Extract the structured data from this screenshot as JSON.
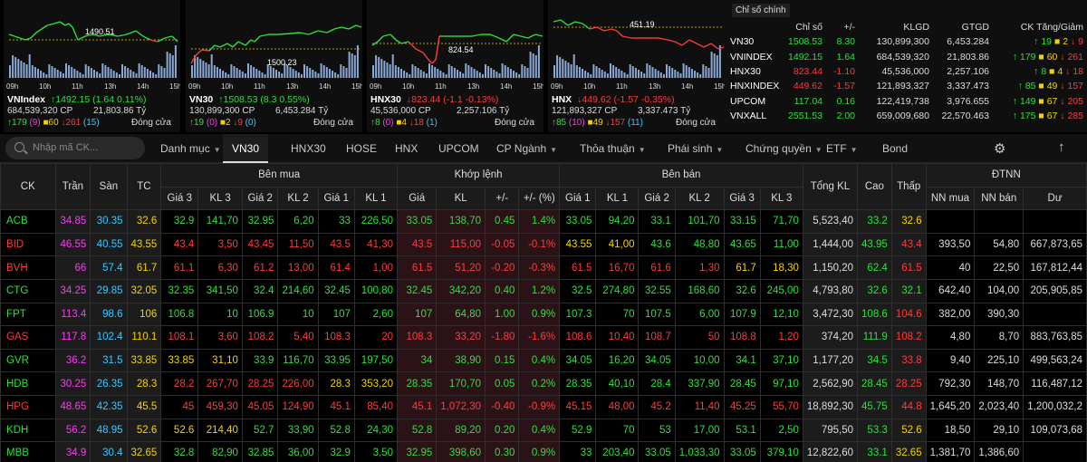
{
  "mini_charts": [
    {
      "name": "VNIndex",
      "arrow": "↑",
      "value": "1492.15",
      "chg": "(1.64  0.11%)",
      "dir": "up",
      "vol": "684,539,320 CP",
      "gt": "21,803.86 Tỷ",
      "up": "179",
      "upn": "(9)",
      "ref": "60",
      "dn": "261",
      "dnn": "(15)",
      "open": "Đóng cửa",
      "label": "1490.51",
      "times": [
        "09h",
        "10h",
        "11h",
        "13h",
        "14h",
        "15h"
      ]
    },
    {
      "name": "VN30",
      "arrow": "↑",
      "value": "1508.53",
      "chg": "(8.3  0.55%)",
      "dir": "up",
      "vol": "130,899,300 CP",
      "gt": "6,453.284 Tỷ",
      "up": "19",
      "upn": "(0)",
      "ref": "2",
      "dn": "9",
      "dnn": "(0)",
      "open": "Đóng cửa",
      "label": "1500.23",
      "times": [
        "09h",
        "10h",
        "11h",
        "13h",
        "14h",
        "15h"
      ]
    },
    {
      "name": "HNX30",
      "arrow": "↓",
      "value": "823.44",
      "chg": "(-1.1  -0.13%)",
      "dir": "dn",
      "vol": "45,536,000 CP",
      "gt": "2,257.106 Tỷ",
      "up": "8",
      "upn": "(0)",
      "ref": "4",
      "dn": "18",
      "dnn": "(1)",
      "open": "Đóng cửa",
      "label": "824.54",
      "times": [
        "09h",
        "10h",
        "11h",
        "13h",
        "14h",
        "15h"
      ]
    },
    {
      "name": "HNX",
      "arrow": "↓",
      "value": "449.62",
      "chg": "(-1.57  -0.35%)",
      "dir": "dn",
      "vol": "121,893,327 CP",
      "gt": "3,337.473 Tỷ",
      "up": "85",
      "upn": "(10)",
      "ref": "49",
      "dn": "157",
      "dnn": "(11)",
      "open": "Đóng cửa",
      "label": "451.19",
      "times": [
        "09h",
        "10h",
        "11h",
        "13h",
        "14h",
        "15h"
      ]
    }
  ],
  "indices": {
    "tab": "Chỉ số chính",
    "headers": [
      "Chỉ số",
      "+/-",
      "KLGD",
      "GTGD",
      "CK Tăng/Giảm"
    ],
    "rows": [
      {
        "name": "VN30",
        "value": "1508.53",
        "chg": "8.30",
        "vol": "130,899,300",
        "gt": "6,453.284",
        "u": "19",
        "r": "2",
        "d": "9",
        "c": "up"
      },
      {
        "name": "VNINDEX",
        "value": "1492.15",
        "chg": "1.64",
        "vol": "684,539,320",
        "gt": "21,803.86",
        "u": "179",
        "r": "60",
        "d": "261",
        "c": "up"
      },
      {
        "name": "HNX30",
        "value": "823.44",
        "chg": "-1.10",
        "vol": "45,536,000",
        "gt": "2,257.106",
        "u": "8",
        "r": "4",
        "d": "18",
        "c": "dn"
      },
      {
        "name": "HNXINDEX",
        "value": "449.62",
        "chg": "-1.57",
        "vol": "121,893,327",
        "gt": "3,337.473",
        "u": "85",
        "r": "49",
        "d": "157",
        "c": "dn"
      },
      {
        "name": "UPCOM",
        "value": "117.04",
        "chg": "0.16",
        "vol": "122,419,738",
        "gt": "3,976.655",
        "u": "149",
        "r": "67",
        "d": "205",
        "c": "up"
      },
      {
        "name": "VNXALL",
        "value": "2551.53",
        "chg": "2.00",
        "vol": "659,009,680",
        "gt": "22,570.463",
        "u": "175",
        "r": "67",
        "d": "285",
        "c": "up"
      }
    ]
  },
  "nav": {
    "search_placeholder": "Nhập mã CK...",
    "tabs": [
      "Danh mục",
      "VN30",
      "HNX30",
      "HOSE",
      "HNX",
      "UPCOM",
      "CP Ngành",
      "Thỏa thuận",
      "Phái sinh",
      "Chứng quyền",
      "ETF",
      "Bond"
    ]
  },
  "board": {
    "headers": {
      "ck": "CK",
      "tran": "Trần",
      "san": "Sàn",
      "tc": "TC",
      "buy": "Bên mua",
      "match": "Khớp lệnh",
      "sell": "Bên bán",
      "tong": "Tổng KL",
      "cao": "Cao",
      "thap": "Thấp",
      "dtnn": "ĐTNN",
      "sub": [
        "Giá 3",
        "KL 3",
        "Giá 2",
        "KL 2",
        "Giá 1",
        "KL 1",
        "Giá",
        "KL",
        "+/-",
        "+/- (%)",
        "Giá 1",
        "KL 1",
        "Giá 2",
        "KL 2",
        "Giá 3",
        "KL 3"
      ],
      "nn": [
        "NN mua",
        "NN bán",
        "Dư"
      ]
    },
    "rows": [
      {
        "ck": "ACB",
        "c": "up",
        "tran": "34.85",
        "san": "30.35",
        "tc": "32.6",
        "cells": [
          [
            "32.9",
            "up"
          ],
          [
            "141,70",
            "up"
          ],
          [
            "32.95",
            "up"
          ],
          [
            "6,20",
            "up"
          ],
          [
            "33",
            "up"
          ],
          [
            "226,50",
            "up"
          ],
          [
            "33.05",
            "up"
          ],
          [
            "138,70",
            "up"
          ],
          [
            "0.45",
            "up"
          ],
          [
            "1.4%",
            "up"
          ],
          [
            "33.05",
            "up"
          ],
          [
            "94,20",
            "up"
          ],
          [
            "33.1",
            "up"
          ],
          [
            "101,70",
            "up"
          ],
          [
            "33.15",
            "up"
          ],
          [
            "71,70",
            "up"
          ]
        ],
        "tong": "5,523,40",
        "cao": [
          "33.2",
          "up"
        ],
        "thap": [
          "32.6",
          "rf"
        ],
        "nnm": "",
        "nnb": "",
        "du": ""
      },
      {
        "ck": "BID",
        "c": "dn",
        "tran": "46.55",
        "san": "40.55",
        "tc": "43.55",
        "cells": [
          [
            "43.4",
            "dn"
          ],
          [
            "3,50",
            "dn"
          ],
          [
            "43.45",
            "dn"
          ],
          [
            "11,50",
            "dn"
          ],
          [
            "43.5",
            "dn"
          ],
          [
            "41,30",
            "dn"
          ],
          [
            "43.5",
            "dn"
          ],
          [
            "115,00",
            "dn"
          ],
          [
            "-0.05",
            "dn"
          ],
          [
            "-0.1%",
            "dn"
          ],
          [
            "43.55",
            "rf"
          ],
          [
            "41,00",
            "rf"
          ],
          [
            "43.6",
            "up"
          ],
          [
            "48,80",
            "up"
          ],
          [
            "43.65",
            "up"
          ],
          [
            "11,00",
            "up"
          ]
        ],
        "tong": "1,444,00",
        "cao": [
          "43.95",
          "up"
        ],
        "thap": [
          "43.4",
          "dn"
        ],
        "nnm": "393,50",
        "nnb": "54,80",
        "du": "667,873,65"
      },
      {
        "ck": "BVH",
        "c": "dn",
        "tran": "66",
        "san": "57.4",
        "tc": "61.7",
        "cells": [
          [
            "61.1",
            "dn"
          ],
          [
            "6,30",
            "dn"
          ],
          [
            "61.2",
            "dn"
          ],
          [
            "13,00",
            "dn"
          ],
          [
            "61.4",
            "dn"
          ],
          [
            "1,00",
            "dn"
          ],
          [
            "61.5",
            "dn"
          ],
          [
            "51,20",
            "dn"
          ],
          [
            "-0.20",
            "dn"
          ],
          [
            "-0.3%",
            "dn"
          ],
          [
            "61.5",
            "dn"
          ],
          [
            "16,70",
            "dn"
          ],
          [
            "61.6",
            "dn"
          ],
          [
            "1,30",
            "dn"
          ],
          [
            "61.7",
            "rf"
          ],
          [
            "18,30",
            "rf"
          ]
        ],
        "tong": "1,150,20",
        "cao": [
          "62.4",
          "up"
        ],
        "thap": [
          "61.5",
          "dn"
        ],
        "nnm": "40",
        "nnb": "22,50",
        "du": "167,812,44"
      },
      {
        "ck": "CTG",
        "c": "up",
        "tran": "34.25",
        "san": "29.85",
        "tc": "32.05",
        "cells": [
          [
            "32.35",
            "up"
          ],
          [
            "341,50",
            "up"
          ],
          [
            "32.4",
            "up"
          ],
          [
            "214,60",
            "up"
          ],
          [
            "32.45",
            "up"
          ],
          [
            "100,80",
            "up"
          ],
          [
            "32.45",
            "up"
          ],
          [
            "342,20",
            "up"
          ],
          [
            "0.40",
            "up"
          ],
          [
            "1.2%",
            "up"
          ],
          [
            "32.5",
            "up"
          ],
          [
            "274,80",
            "up"
          ],
          [
            "32.55",
            "up"
          ],
          [
            "168,60",
            "up"
          ],
          [
            "32.6",
            "up"
          ],
          [
            "245,00",
            "up"
          ]
        ],
        "tong": "4,793,80",
        "cao": [
          "32.6",
          "up"
        ],
        "thap": [
          "32.1",
          "up"
        ],
        "nnm": "642,40",
        "nnb": "104,00",
        "du": "205,905,85"
      },
      {
        "ck": "FPT",
        "c": "up",
        "tran": "113.4",
        "san": "98.6",
        "tc": "106",
        "cells": [
          [
            "106.8",
            "up"
          ],
          [
            "10",
            "up"
          ],
          [
            "106.9",
            "up"
          ],
          [
            "10",
            "up"
          ],
          [
            "107",
            "up"
          ],
          [
            "2,60",
            "up"
          ],
          [
            "107",
            "up"
          ],
          [
            "64,80",
            "up"
          ],
          [
            "1.00",
            "up"
          ],
          [
            "0.9%",
            "up"
          ],
          [
            "107.3",
            "up"
          ],
          [
            "70",
            "up"
          ],
          [
            "107.5",
            "up"
          ],
          [
            "6,00",
            "up"
          ],
          [
            "107.9",
            "up"
          ],
          [
            "12,10",
            "up"
          ]
        ],
        "tong": "3,472,30",
        "cao": [
          "108.6",
          "up"
        ],
        "thap": [
          "104.6",
          "dn"
        ],
        "nnm": "382,00",
        "nnb": "390,30",
        "du": ""
      },
      {
        "ck": "GAS",
        "c": "dn",
        "tran": "117.8",
        "san": "102.4",
        "tc": "110.1",
        "cells": [
          [
            "108.1",
            "dn"
          ],
          [
            "3,60",
            "dn"
          ],
          [
            "108.2",
            "dn"
          ],
          [
            "5,40",
            "dn"
          ],
          [
            "108.3",
            "dn"
          ],
          [
            "20",
            "dn"
          ],
          [
            "108.3",
            "dn"
          ],
          [
            "33,20",
            "dn"
          ],
          [
            "-1.80",
            "dn"
          ],
          [
            "-1.6%",
            "dn"
          ],
          [
            "108.6",
            "dn"
          ],
          [
            "10,40",
            "dn"
          ],
          [
            "108.7",
            "dn"
          ],
          [
            "50",
            "dn"
          ],
          [
            "108.8",
            "dn"
          ],
          [
            "1,20",
            "dn"
          ]
        ],
        "tong": "374,20",
        "cao": [
          "111.9",
          "up"
        ],
        "thap": [
          "108.2",
          "dn"
        ],
        "nnm": "4,80",
        "nnb": "8,70",
        "du": "883,763,85"
      },
      {
        "ck": "GVR",
        "c": "up",
        "tran": "36.2",
        "san": "31.5",
        "tc": "33.85",
        "cells": [
          [
            "33.85",
            "rf"
          ],
          [
            "31,10",
            "rf"
          ],
          [
            "33.9",
            "up"
          ],
          [
            "116,70",
            "up"
          ],
          [
            "33.95",
            "up"
          ],
          [
            "197,50",
            "up"
          ],
          [
            "34",
            "up"
          ],
          [
            "38,90",
            "up"
          ],
          [
            "0.15",
            "up"
          ],
          [
            "0.4%",
            "up"
          ],
          [
            "34.05",
            "up"
          ],
          [
            "16,20",
            "up"
          ],
          [
            "34.05",
            "up"
          ],
          [
            "10,00",
            "up"
          ],
          [
            "34.1",
            "up"
          ],
          [
            "37,10",
            "up"
          ]
        ],
        "tong": "1,177,20",
        "cao": [
          "34.5",
          "up"
        ],
        "thap": [
          "33.8",
          "dn"
        ],
        "nnm": "9,40",
        "nnb": "225,10",
        "du": "499,563,24"
      },
      {
        "ck": "HDB",
        "c": "up",
        "tran": "30.25",
        "san": "26.35",
        "tc": "28.3",
        "cells": [
          [
            "28.2",
            "dn"
          ],
          [
            "267,70",
            "dn"
          ],
          [
            "28.25",
            "dn"
          ],
          [
            "226,00",
            "dn"
          ],
          [
            "28.3",
            "rf"
          ],
          [
            "353,20",
            "rf"
          ],
          [
            "28.35",
            "up"
          ],
          [
            "170,70",
            "up"
          ],
          [
            "0.05",
            "up"
          ],
          [
            "0.2%",
            "up"
          ],
          [
            "28.35",
            "up"
          ],
          [
            "40,10",
            "up"
          ],
          [
            "28.4",
            "up"
          ],
          [
            "337,90",
            "up"
          ],
          [
            "28.45",
            "up"
          ],
          [
            "97,10",
            "up"
          ]
        ],
        "tong": "2,562,90",
        "cao": [
          "28.45",
          "up"
        ],
        "thap": [
          "28.25",
          "dn"
        ],
        "nnm": "792,30",
        "nnb": "148,70",
        "du": "116,487,12"
      },
      {
        "ck": "HPG",
        "c": "dn",
        "tran": "48.65",
        "san": "42.35",
        "tc": "45.5",
        "cells": [
          [
            "45",
            "dn"
          ],
          [
            "459,30",
            "dn"
          ],
          [
            "45.05",
            "dn"
          ],
          [
            "124,90",
            "dn"
          ],
          [
            "45.1",
            "dn"
          ],
          [
            "85,40",
            "dn"
          ],
          [
            "45.1",
            "dn"
          ],
          [
            "1,072,30",
            "dn"
          ],
          [
            "-0.40",
            "dn"
          ],
          [
            "-0.9%",
            "dn"
          ],
          [
            "45.15",
            "dn"
          ],
          [
            "48,00",
            "dn"
          ],
          [
            "45.2",
            "dn"
          ],
          [
            "11,40",
            "dn"
          ],
          [
            "45.25",
            "dn"
          ],
          [
            "55,70",
            "dn"
          ]
        ],
        "tong": "18,892,30",
        "cao": [
          "45.75",
          "up"
        ],
        "thap": [
          "44.8",
          "dn"
        ],
        "nnm": "1,645,20",
        "nnb": "2,023,40",
        "du": "1,200,032,2"
      },
      {
        "ck": "KDH",
        "c": "up",
        "tran": "56.2",
        "san": "48.95",
        "tc": "52.6",
        "cells": [
          [
            "52.6",
            "rf"
          ],
          [
            "214,40",
            "rf"
          ],
          [
            "52.7",
            "up"
          ],
          [
            "33,90",
            "up"
          ],
          [
            "52.8",
            "up"
          ],
          [
            "24,30",
            "up"
          ],
          [
            "52.8",
            "up"
          ],
          [
            "89,20",
            "up"
          ],
          [
            "0.20",
            "up"
          ],
          [
            "0.4%",
            "up"
          ],
          [
            "52.9",
            "up"
          ],
          [
            "70",
            "up"
          ],
          [
            "53",
            "up"
          ],
          [
            "17,00",
            "up"
          ],
          [
            "53.1",
            "up"
          ],
          [
            "2,50",
            "up"
          ]
        ],
        "tong": "795,50",
        "cao": [
          "53.3",
          "up"
        ],
        "thap": [
          "52.6",
          "rf"
        ],
        "nnm": "18,50",
        "nnb": "29,10",
        "du": "109,073,68"
      },
      {
        "ck": "MBB",
        "c": "up",
        "tran": "34.9",
        "san": "30.4",
        "tc": "32.65",
        "cells": [
          [
            "32.8",
            "up"
          ],
          [
            "82,90",
            "up"
          ],
          [
            "32.85",
            "up"
          ],
          [
            "36,00",
            "up"
          ],
          [
            "32.9",
            "up"
          ],
          [
            "3,50",
            "up"
          ],
          [
            "32.95",
            "up"
          ],
          [
            "398,60",
            "up"
          ],
          [
            "0.30",
            "up"
          ],
          [
            "0.9%",
            "up"
          ],
          [
            "33",
            "up"
          ],
          [
            "203,40",
            "up"
          ],
          [
            "33.05",
            "up"
          ],
          [
            "1,033,30",
            "up"
          ],
          [
            "33.05",
            "up"
          ],
          [
            "379,10",
            "up"
          ]
        ],
        "tong": "12,822,60",
        "cao": [
          "33.1",
          "up"
        ],
        "thap": [
          "32.65",
          "rf"
        ],
        "nnm": "1,381,70",
        "nnb": "1,386,60",
        "du": ""
      }
    ]
  }
}
